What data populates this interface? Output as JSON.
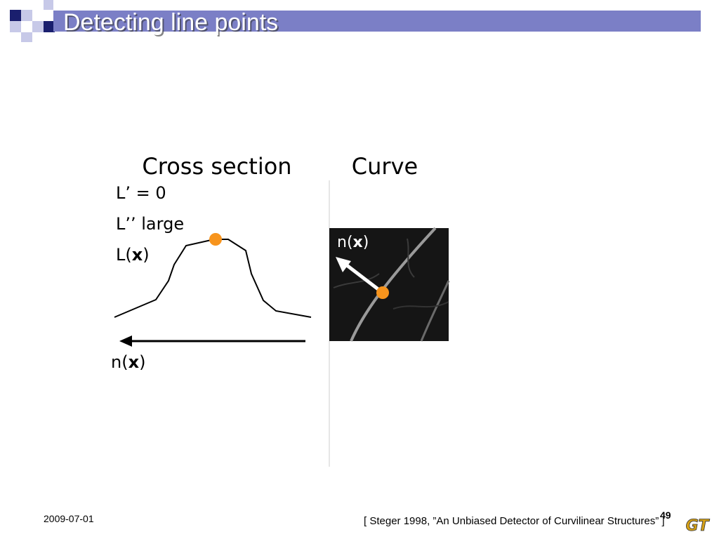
{
  "header": {
    "title": "Detecting line points"
  },
  "columns": {
    "left": "Cross section",
    "right": "Curve"
  },
  "labels": {
    "first": "L’ = 0",
    "second": "L’’ large",
    "third": {
      "prefix": "L(",
      "bold": "x",
      "suffix": ")"
    }
  },
  "arrow_labels": {
    "cross_section": {
      "prefix": "n(",
      "bold": "x",
      "suffix": ")"
    },
    "curve": {
      "prefix": "n(",
      "bold": "x",
      "suffix": ")"
    }
  },
  "footer": {
    "date": "2009-07-01",
    "citation": "[ Steger 1998, ”An Unbiased Detector of Curvilinear Structures” ]",
    "page": "49",
    "logo": "GT"
  }
}
